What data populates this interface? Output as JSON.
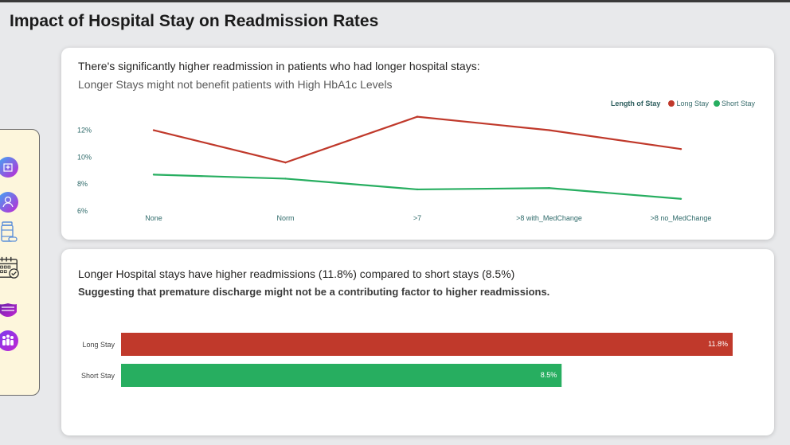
{
  "page": {
    "title": "Impact of Hospital Stay on Readmission Rates"
  },
  "sidebar": {
    "icons": [
      {
        "name": "hospital-icon"
      },
      {
        "name": "patient-icon"
      },
      {
        "name": "medicine-icon"
      },
      {
        "name": "calendar-icon"
      },
      {
        "name": "mask-icon"
      },
      {
        "name": "people-icon"
      }
    ]
  },
  "line_card": {
    "headline": "There's significantly higher readmission in patients who had longer hospital stays:",
    "subtitle": "Longer Stays might not benefit patients with High HbA1c Levels",
    "legend_title": "Length of Stay"
  },
  "bar_card": {
    "headline": "Longer Hospital stays have higher readmissions (11.8%) compared to short stays (8.5%)",
    "subtitle": "Suggesting that premature discharge might not be a contributing factor to higher readmissions."
  },
  "colors": {
    "long": "#c0392b",
    "short": "#27ae60",
    "axis_text": "#2e6a6a"
  },
  "chart_data": [
    {
      "type": "line",
      "categories": [
        "None",
        "Norm",
        ">7",
        ">8 with_MedChange",
        ">8 no_MedChange"
      ],
      "series": [
        {
          "name": "Long Stay",
          "values": [
            12.0,
            9.6,
            13.0,
            12.0,
            10.6
          ]
        },
        {
          "name": "Short Stay",
          "values": [
            8.7,
            8.4,
            7.6,
            7.7,
            6.9
          ]
        }
      ],
      "yticks": [
        "6%",
        "8%",
        "10%",
        "12%"
      ],
      "ylim": [
        6,
        12.8
      ],
      "legend": "top-right",
      "grid": false
    },
    {
      "type": "bar",
      "orientation": "horizontal",
      "categories": [
        "Long Stay",
        "Short Stay"
      ],
      "values": [
        11.8,
        8.5
      ],
      "labels": [
        "11.8%",
        "8.5%"
      ],
      "xlim": [
        0,
        11.8
      ]
    }
  ]
}
